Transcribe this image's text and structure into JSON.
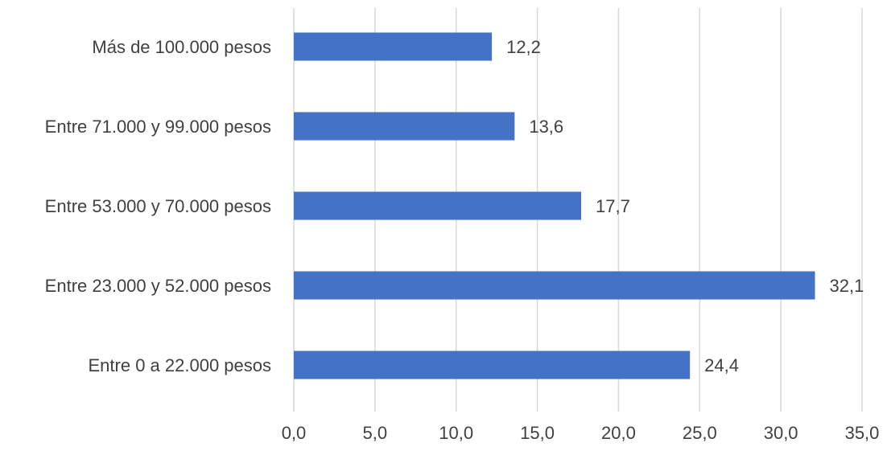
{
  "chart_data": {
    "type": "bar",
    "orientation": "horizontal",
    "categories": [
      "Más de 100.000 pesos",
      "Entre 71.000 y 99.000 pesos",
      "Entre 53.000 y 70.000 pesos",
      "Entre 23.000 y 52.000 pesos",
      "Entre 0 a 22.000 pesos"
    ],
    "values": [
      12.2,
      13.6,
      17.7,
      32.1,
      24.4
    ],
    "value_labels": [
      "12,2",
      "13,6",
      "17,7",
      "32,1",
      "24,4"
    ],
    "xlim": [
      0,
      35
    ],
    "x_ticks": [
      0,
      5,
      10,
      15,
      20,
      25,
      30,
      35
    ],
    "x_tick_labels": [
      "0,0",
      "5,0",
      "10,0",
      "15,0",
      "20,0",
      "25,0",
      "30,0",
      "35,0"
    ],
    "grid": "vertical",
    "legend": "none",
    "bar_color": "#4472C4",
    "grid_color": "#D9D9D9",
    "text_color": "#404040"
  }
}
